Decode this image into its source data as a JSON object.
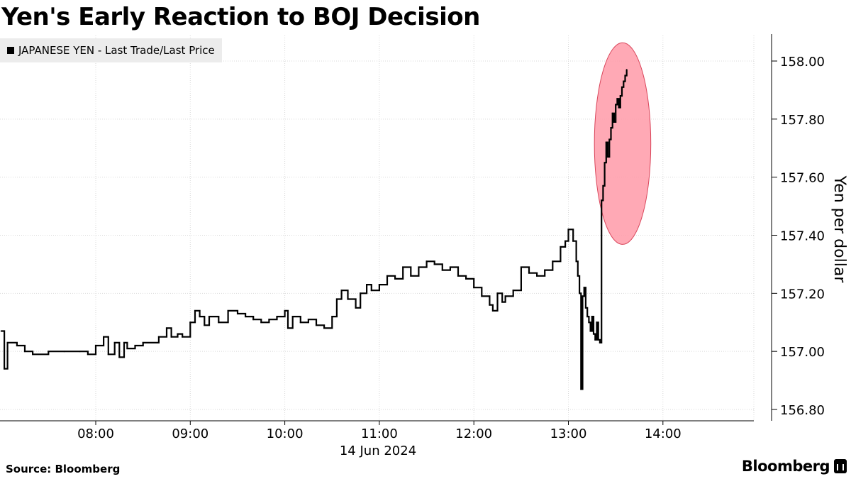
{
  "header": {
    "title": "Yen's Early Reaction to BOJ Decision"
  },
  "legend": {
    "label": "JAPANESE YEN - Last Trade/Last Price"
  },
  "footer": {
    "source": "Source: Bloomberg",
    "brand": "Bloomberg"
  },
  "colors": {
    "line": "#000000",
    "grid": "#d9d9d9",
    "highlight_fill": "#ff9aa8",
    "highlight_stroke": "#d9455a",
    "legend_bg": "#ececec"
  },
  "chart_data": {
    "type": "line",
    "title": "Yen's Early Reaction to BOJ Decision",
    "ylabel": "Yen per dollar",
    "xlabel": "14 Jun 2024",
    "ylim": [
      156.76,
      158.09
    ],
    "xlim_hours": [
      7.0,
      15.0
    ],
    "y_ticks": [
      156.8,
      157.0,
      157.2,
      157.4,
      157.6,
      157.8,
      158.0
    ],
    "y_tick_labels": [
      "156.80",
      "157.00",
      "157.20",
      "157.40",
      "157.60",
      "157.80",
      "158.00"
    ],
    "x_ticks": [
      8,
      9,
      10,
      11,
      12,
      13,
      14
    ],
    "x_tick_labels": [
      "08:00",
      "09:00",
      "10:00",
      "11:00",
      "12:00",
      "13:00",
      "14:00"
    ],
    "date_label": "14 Jun 2024",
    "grid": true,
    "legend_position": "top-left",
    "annotation": "highlight ellipse around post-decision surge",
    "series": [
      {
        "name": "JAPANESE YEN - Last Trade/Last Price",
        "x": [
          "07:00",
          "07:02",
          "07:04",
          "07:05",
          "07:10",
          "07:15",
          "07:20",
          "07:30",
          "07:40",
          "07:50",
          "07:55",
          "08:00",
          "08:05",
          "08:08",
          "08:12",
          "08:15",
          "08:18",
          "08:20",
          "08:25",
          "08:30",
          "08:40",
          "08:45",
          "08:48",
          "08:52",
          "08:55",
          "09:00",
          "09:03",
          "09:06",
          "09:09",
          "09:12",
          "09:18",
          "09:24",
          "09:30",
          "09:35",
          "09:40",
          "09:45",
          "09:50",
          "09:55",
          "10:00",
          "10:02",
          "10:05",
          "10:10",
          "10:15",
          "10:20",
          "10:25",
          "10:30",
          "10:33",
          "10:36",
          "10:40",
          "10:45",
          "10:48",
          "10:52",
          "10:55",
          "11:00",
          "11:05",
          "11:10",
          "11:15",
          "11:20",
          "11:25",
          "11:30",
          "11:35",
          "11:40",
          "11:45",
          "11:50",
          "11:55",
          "12:00",
          "12:05",
          "12:10",
          "12:12",
          "12:15",
          "12:18",
          "12:20",
          "12:25",
          "12:30",
          "12:35",
          "12:40",
          "12:45",
          "12:50",
          "12:55",
          "12:58",
          "13:00",
          "13:03",
          "13:05",
          "13:06",
          "13:07",
          "13:08",
          "13:09",
          "13:10",
          "13:11",
          "13:12",
          "13:13",
          "13:14",
          "13:15",
          "13:16",
          "13:17",
          "13:18",
          "13:19",
          "13:20",
          "13:21",
          "13:22",
          "13:23",
          "13:24",
          "13:25",
          "13:26",
          "13:27",
          "13:28",
          "13:29",
          "13:30",
          "13:31",
          "13:32",
          "13:33",
          "13:34",
          "13:35",
          "13:36",
          "13:37"
        ],
        "y": [
          157.07,
          156.94,
          157.03,
          157.03,
          157.02,
          157.0,
          156.99,
          157.0,
          157.0,
          157.0,
          156.99,
          157.02,
          157.05,
          156.99,
          157.03,
          156.98,
          157.03,
          157.01,
          157.02,
          157.03,
          157.05,
          157.08,
          157.05,
          157.06,
          157.05,
          157.1,
          157.14,
          157.12,
          157.09,
          157.12,
          157.1,
          157.14,
          157.13,
          157.12,
          157.11,
          157.1,
          157.11,
          157.12,
          157.14,
          157.08,
          157.12,
          157.1,
          157.11,
          157.09,
          157.08,
          157.12,
          157.18,
          157.21,
          157.18,
          157.15,
          157.2,
          157.23,
          157.21,
          157.23,
          157.26,
          157.25,
          157.29,
          157.26,
          157.29,
          157.31,
          157.3,
          157.28,
          157.29,
          157.26,
          157.25,
          157.22,
          157.19,
          157.16,
          157.14,
          157.2,
          157.17,
          157.19,
          157.21,
          157.29,
          157.27,
          157.26,
          157.28,
          157.31,
          157.36,
          157.38,
          157.42,
          157.38,
          157.31,
          157.26,
          157.2,
          156.87,
          157.19,
          157.22,
          157.15,
          157.12,
          157.1,
          157.07,
          157.12,
          157.06,
          157.04,
          157.1,
          157.04,
          157.03,
          157.52,
          157.57,
          157.65,
          157.72,
          157.67,
          157.73,
          157.77,
          157.82,
          157.79,
          157.85,
          157.87,
          157.84,
          157.88,
          157.91,
          157.93,
          157.95,
          157.97
        ]
      }
    ]
  }
}
